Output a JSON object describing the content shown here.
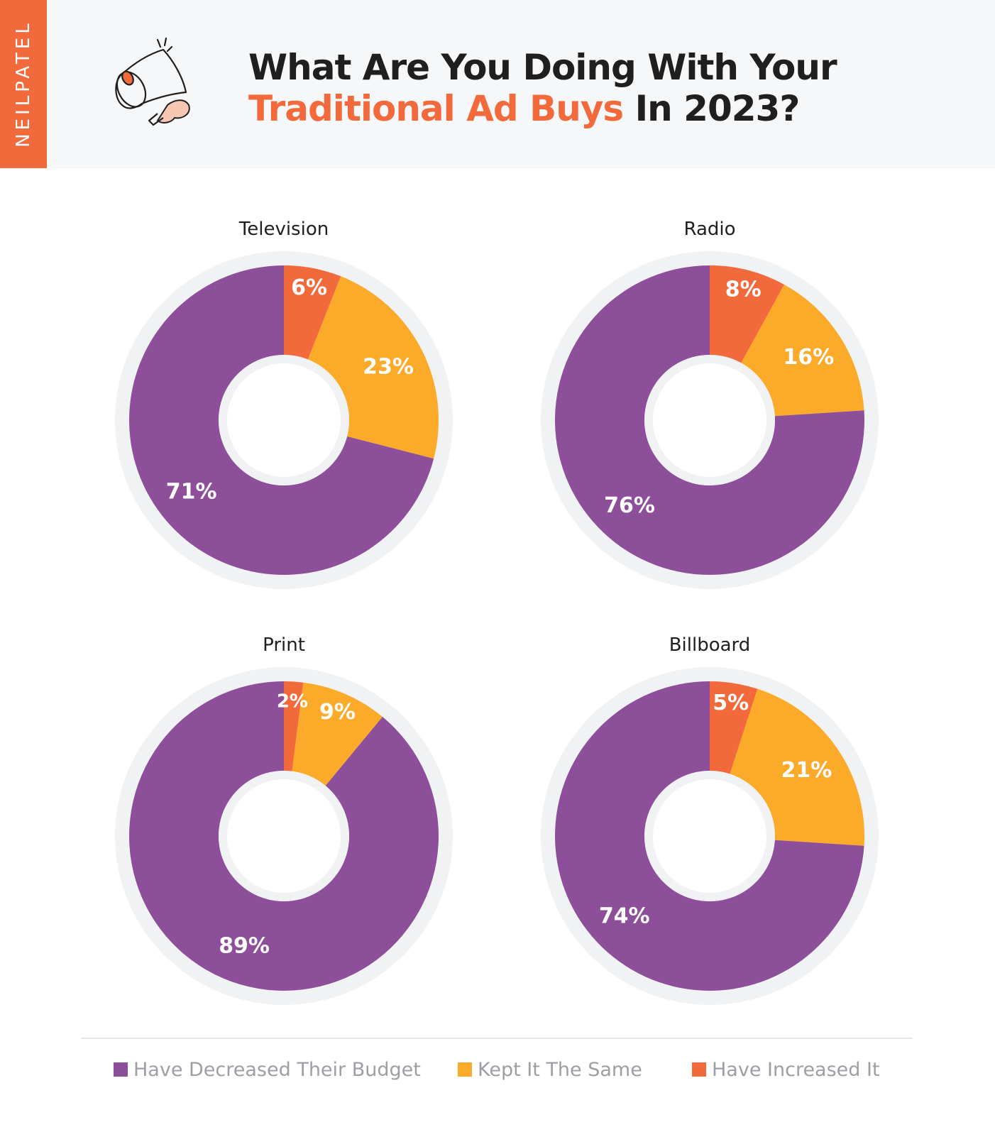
{
  "brand": "NEILPATEL",
  "title": {
    "line1": "What Are You Doing With Your",
    "line2_accent": "Traditional Ad Buys",
    "line2_rest": " In 2023?"
  },
  "colors": {
    "decreased": "#8e4f9a",
    "same": "#fbaa2a",
    "increased": "#f26a3b",
    "ring": "#f1f2f4",
    "brand": "#f26a3b"
  },
  "chart_data": [
    {
      "type": "pie",
      "title": "Television",
      "slices": [
        {
          "label": "Have Increased It",
          "value": 6,
          "text": "6%"
        },
        {
          "label": "Kept It The Same",
          "value": 23,
          "text": "23%"
        },
        {
          "label": "Have Decreased Their Budget",
          "value": 71,
          "text": "71%"
        }
      ]
    },
    {
      "type": "pie",
      "title": "Radio",
      "slices": [
        {
          "label": "Have Increased It",
          "value": 8,
          "text": "8%"
        },
        {
          "label": "Kept It The Same",
          "value": 16,
          "text": "16%"
        },
        {
          "label": "Have Decreased Their Budget",
          "value": 76,
          "text": "76%"
        }
      ]
    },
    {
      "type": "pie",
      "title": "Print",
      "slices": [
        {
          "label": "Have Increased It",
          "value": 2,
          "text": "2%"
        },
        {
          "label": "Kept It The Same",
          "value": 9,
          "text": "9%"
        },
        {
          "label": "Have Decreased Their Budget",
          "value": 89,
          "text": "89%"
        }
      ]
    },
    {
      "type": "pie",
      "title": "Billboard",
      "slices": [
        {
          "label": "Have Increased It",
          "value": 5,
          "text": "5%"
        },
        {
          "label": "Kept It The Same",
          "value": 21,
          "text": "21%"
        },
        {
          "label": "Have Decreased Their Budget",
          "value": 74,
          "text": "74%"
        }
      ]
    }
  ],
  "legend": [
    {
      "label": "Have Decreased Their Budget"
    },
    {
      "label": "Kept It The Same"
    },
    {
      "label": "Have Increased It"
    }
  ]
}
